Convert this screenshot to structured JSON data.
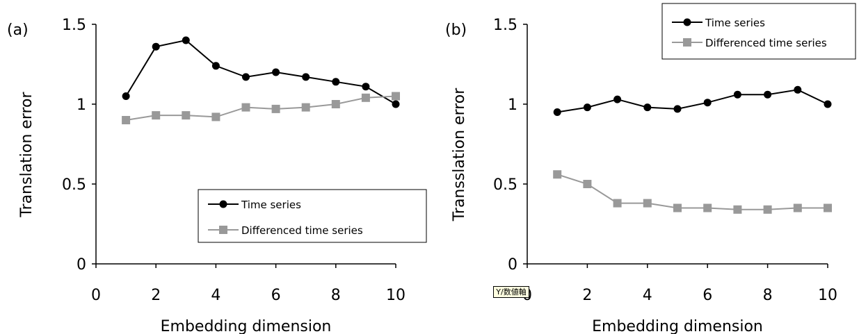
{
  "tooltip": {
    "text": "Y/数値軸"
  },
  "chart_data": [
    {
      "panel_label": "(a)",
      "type": "line",
      "xlabel": "Embedding dimension",
      "ylabel": "Translation error",
      "xlim": [
        0,
        10
      ],
      "ylim": [
        0,
        1.5
      ],
      "x_ticks": [
        "0",
        "2",
        "4",
        "6",
        "8",
        "10"
      ],
      "y_ticks": [
        "0",
        "0.5",
        "1",
        "1.5"
      ],
      "grid": false,
      "legend_position": "bottom-right",
      "x": [
        1,
        2,
        3,
        4,
        5,
        6,
        7,
        8,
        9,
        10
      ],
      "series": [
        {
          "name": "Time series",
          "color": "#000000",
          "marker": "circle",
          "values": [
            1.05,
            1.36,
            1.4,
            1.24,
            1.17,
            1.2,
            1.17,
            1.14,
            1.11,
            1.0
          ]
        },
        {
          "name": "Differenced time series",
          "color": "#999999",
          "marker": "square",
          "values": [
            0.9,
            0.93,
            0.93,
            0.92,
            0.98,
            0.97,
            0.98,
            1.0,
            1.04,
            1.05
          ]
        }
      ]
    },
    {
      "panel_label": "(b)",
      "type": "line",
      "xlabel": "Embedding dimension",
      "ylabel": "Transslation error",
      "xlim": [
        0,
        10
      ],
      "ylim": [
        0,
        1.5
      ],
      "x_ticks": [
        "0",
        "2",
        "4",
        "6",
        "8",
        "10"
      ],
      "y_ticks": [
        "0",
        "0.5",
        "1",
        "1.5"
      ],
      "grid": false,
      "legend_position": "top-right",
      "x": [
        1,
        2,
        3,
        4,
        5,
        6,
        7,
        8,
        9,
        10
      ],
      "series": [
        {
          "name": "Time series",
          "color": "#000000",
          "marker": "circle",
          "values": [
            0.95,
            0.98,
            1.03,
            0.98,
            0.97,
            1.01,
            1.06,
            1.06,
            1.09,
            1.0
          ]
        },
        {
          "name": "Differenced time series",
          "color": "#999999",
          "marker": "square",
          "values": [
            0.56,
            0.5,
            0.38,
            0.38,
            0.35,
            0.35,
            0.34,
            0.34,
            0.35,
            0.35
          ]
        }
      ]
    }
  ]
}
